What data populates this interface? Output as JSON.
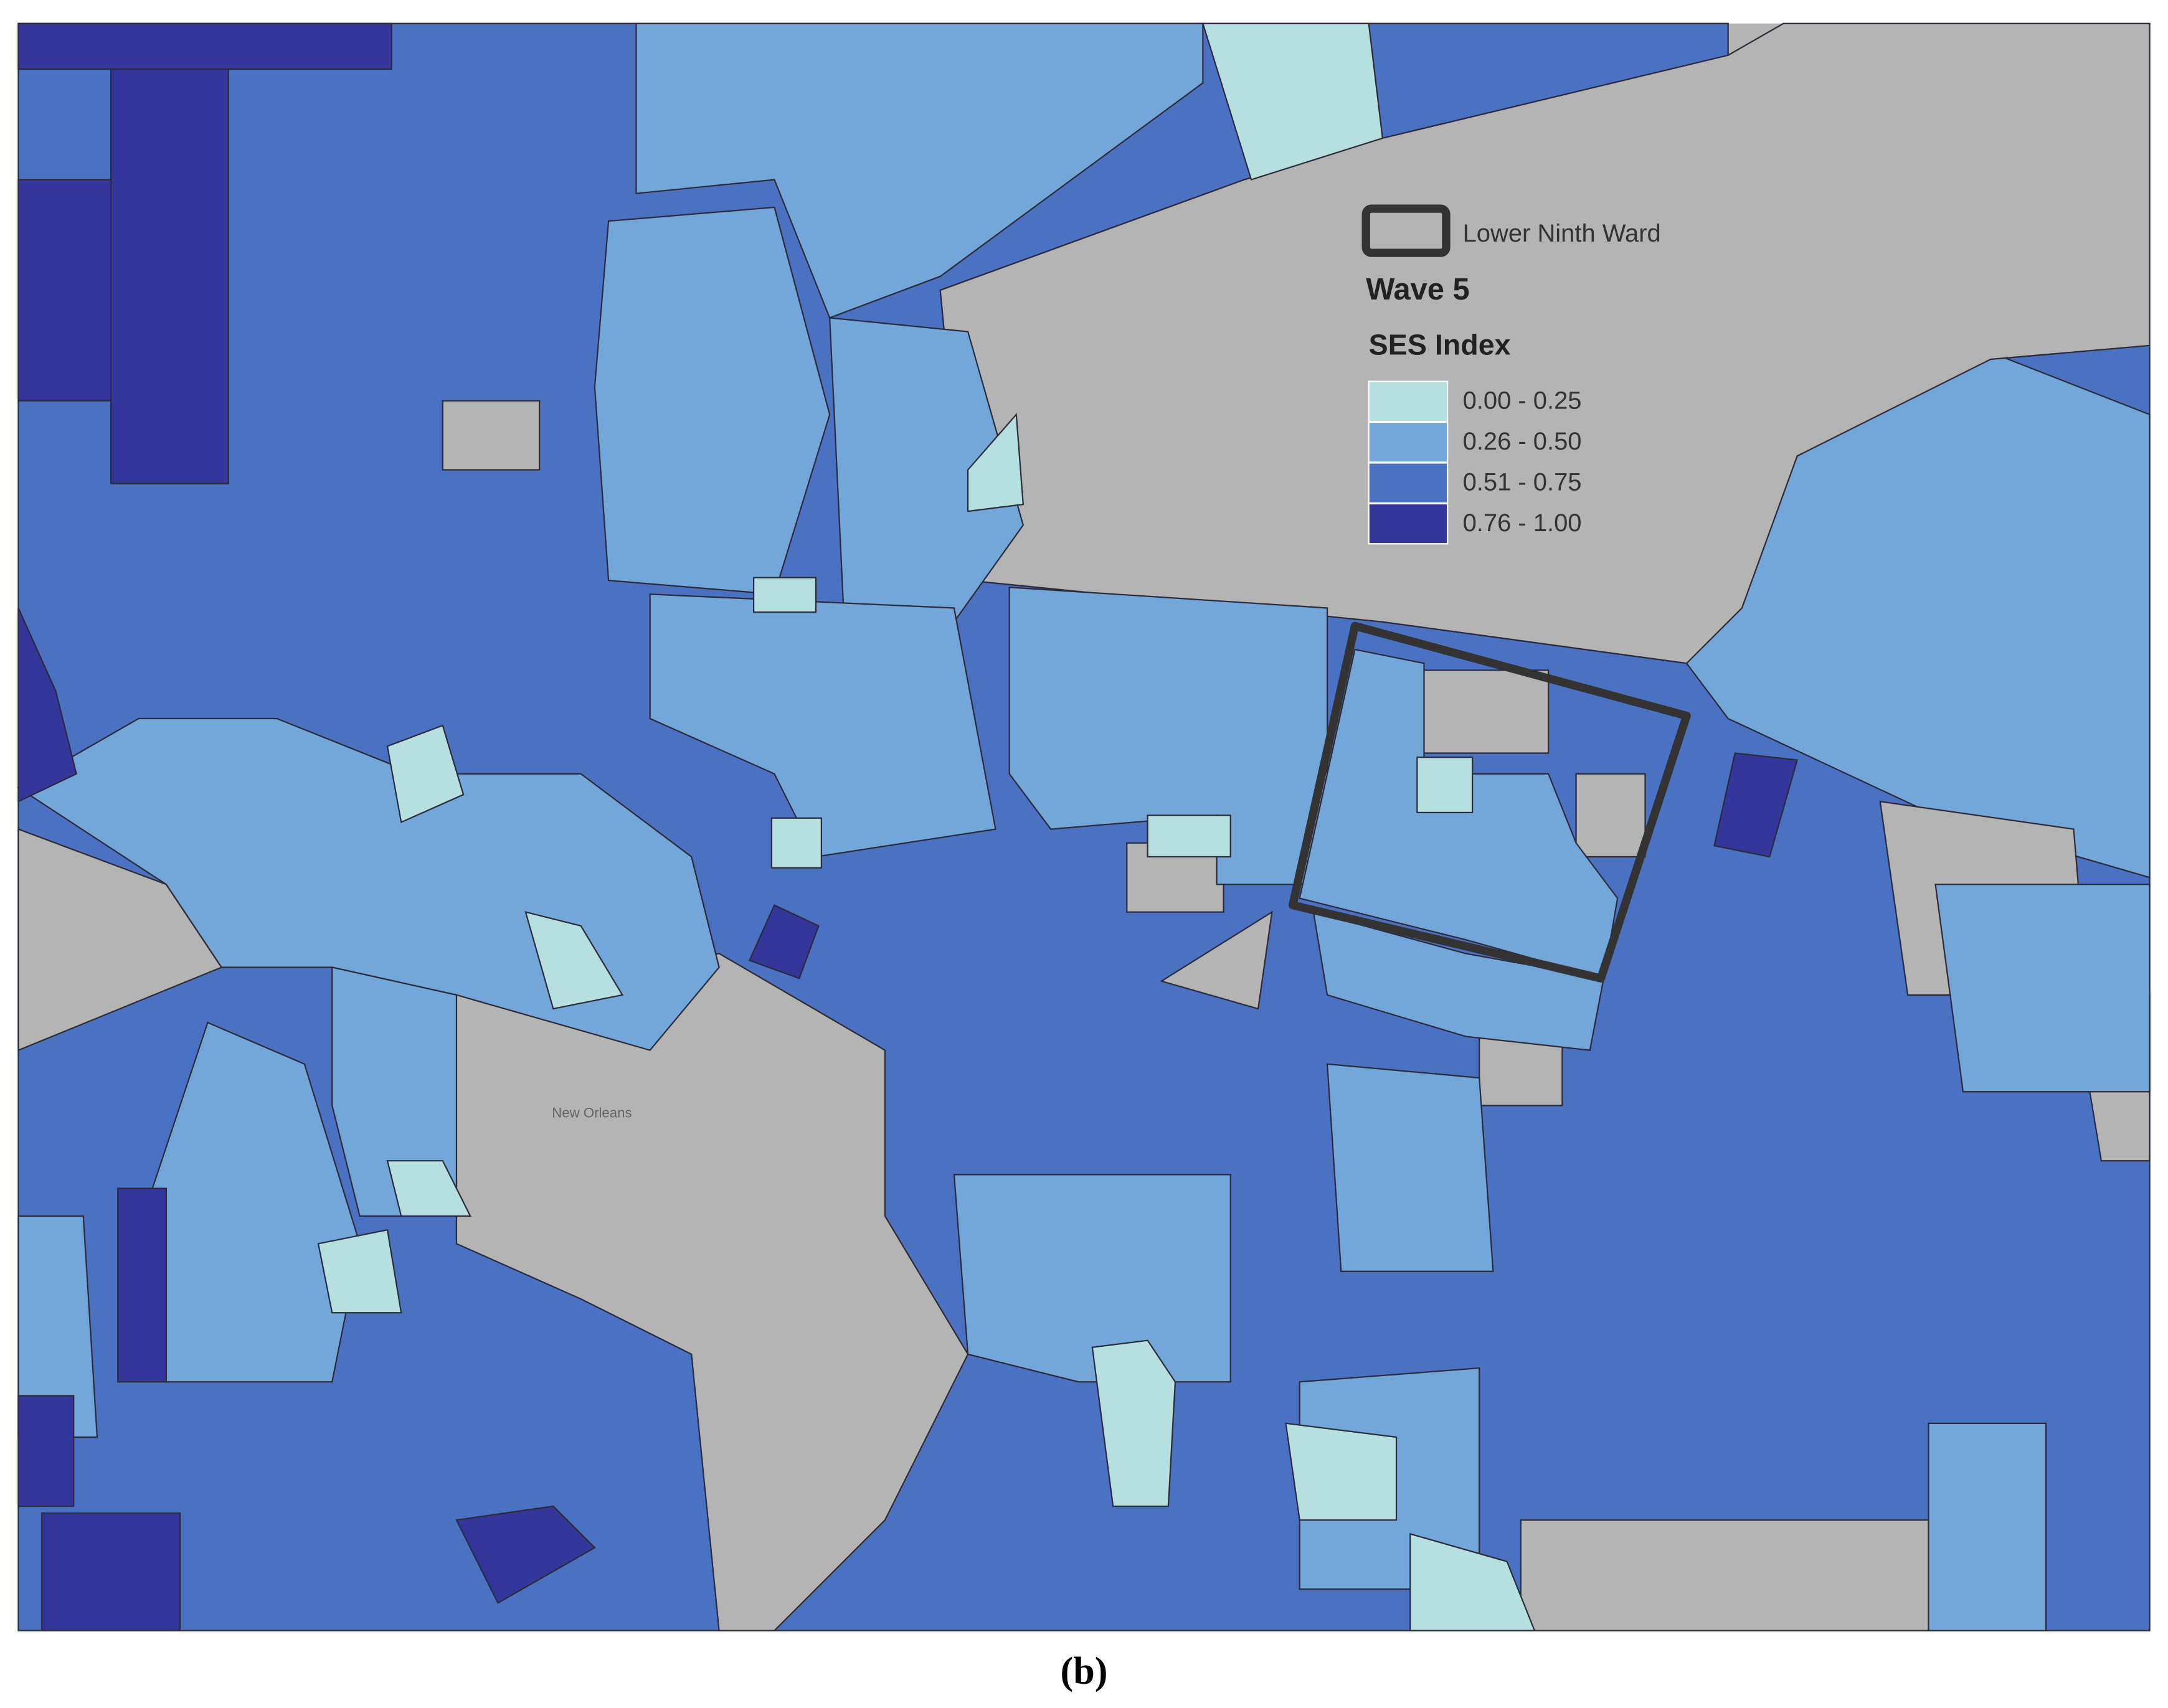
{
  "legend": {
    "outline_label": "Lower Ninth Ward",
    "title": "Wave 5",
    "subtitle": "SES Index",
    "classes": [
      {
        "label": "0.00 - 0.25",
        "color": "#b6dfe0"
      },
      {
        "label": "0.26 - 0.50",
        "color": "#74a7d9"
      },
      {
        "label": "0.51 - 0.75",
        "color": "#4b72c2"
      },
      {
        "label": "0.76 - 1.00",
        "color": "#34369c"
      }
    ]
  },
  "map_labels": [
    "New Orleans"
  ],
  "caption": "(b)"
}
